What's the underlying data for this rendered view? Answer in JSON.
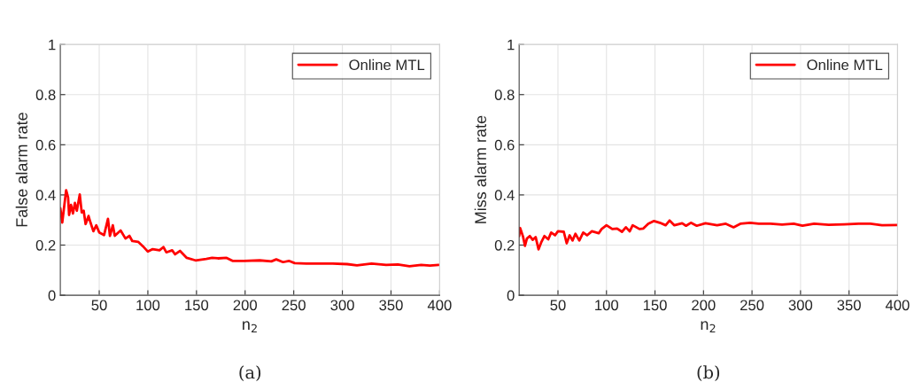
{
  "chart_data": [
    {
      "type": "line",
      "xlabel": "n$_{2}$",
      "ylabel": "False alarm rate",
      "annotations": [
        "(a)"
      ],
      "x": [
        10,
        12,
        16,
        18,
        19,
        21,
        23,
        25,
        27,
        30,
        32,
        34,
        36,
        39,
        41,
        44,
        47,
        50,
        55,
        59,
        61,
        64,
        66,
        72,
        77,
        81,
        84,
        90,
        95,
        100,
        105,
        112,
        116,
        119,
        125,
        128,
        133,
        140,
        149,
        160,
        166,
        172,
        181,
        187,
        199,
        215,
        227,
        232,
        239,
        245,
        251,
        263,
        275,
        290,
        305,
        315,
        330,
        345,
        357,
        369,
        381,
        390,
        399
      ],
      "series": [
        {
          "name": "Online MTL",
          "color": "#ff0000",
          "values": [
            0.347,
            0.29,
            0.419,
            0.39,
            0.32,
            0.36,
            0.326,
            0.368,
            0.337,
            0.402,
            0.33,
            0.337,
            0.284,
            0.316,
            0.29,
            0.255,
            0.279,
            0.25,
            0.24,
            0.305,
            0.237,
            0.279,
            0.237,
            0.258,
            0.226,
            0.237,
            0.216,
            0.213,
            0.195,
            0.174,
            0.184,
            0.179,
            0.192,
            0.171,
            0.179,
            0.163,
            0.177,
            0.149,
            0.139,
            0.145,
            0.149,
            0.147,
            0.149,
            0.137,
            0.137,
            0.139,
            0.135,
            0.143,
            0.132,
            0.137,
            0.128,
            0.126,
            0.126,
            0.126,
            0.124,
            0.119,
            0.126,
            0.121,
            0.123,
            0.116,
            0.121,
            0.118,
            0.121
          ]
        }
      ],
      "xlim": [
        10,
        400
      ],
      "ylim": [
        0,
        1
      ],
      "xticks": [
        50,
        100,
        150,
        200,
        250,
        300,
        350,
        400
      ],
      "yticks": [
        0,
        0.2,
        0.4,
        0.6,
        0.8,
        1
      ],
      "grid": true,
      "legend": "top right"
    },
    {
      "type": "line",
      "xlabel": "n$_{2}$",
      "ylabel": "Miss alarm rate",
      "annotations": [
        "(b)"
      ],
      "x": [
        10,
        11,
        14,
        16,
        18,
        21,
        24,
        27,
        30,
        33,
        36,
        40,
        43,
        47,
        50,
        56,
        59,
        62,
        65,
        68,
        72,
        76,
        80,
        85,
        92,
        95,
        100,
        106,
        111,
        116,
        120,
        124,
        127,
        134,
        138,
        143,
        149,
        155,
        161,
        165,
        170,
        178,
        182,
        187,
        193,
        202,
        214,
        223,
        231,
        238,
        248,
        257,
        269,
        281,
        293,
        302,
        314,
        329,
        345,
        360,
        372,
        384,
        400
      ],
      "series": [
        {
          "name": "Online MTL",
          "color": "#ff0000",
          "values": [
            0.236,
            0.268,
            0.234,
            0.197,
            0.226,
            0.236,
            0.221,
            0.232,
            0.183,
            0.213,
            0.236,
            0.223,
            0.25,
            0.239,
            0.255,
            0.253,
            0.207,
            0.239,
            0.218,
            0.245,
            0.218,
            0.25,
            0.239,
            0.255,
            0.247,
            0.264,
            0.279,
            0.264,
            0.266,
            0.253,
            0.271,
            0.255,
            0.279,
            0.264,
            0.266,
            0.285,
            0.296,
            0.289,
            0.279,
            0.298,
            0.279,
            0.287,
            0.277,
            0.289,
            0.277,
            0.287,
            0.279,
            0.285,
            0.271,
            0.285,
            0.289,
            0.285,
            0.285,
            0.282,
            0.285,
            0.277,
            0.285,
            0.281,
            0.283,
            0.285,
            0.285,
            0.279,
            0.28
          ]
        }
      ],
      "xlim": [
        10,
        400
      ],
      "ylim": [
        0,
        1
      ],
      "xticks": [
        50,
        100,
        150,
        200,
        250,
        300,
        350,
        400
      ],
      "yticks": [
        0,
        0.2,
        0.4,
        0.6,
        0.8,
        1
      ],
      "grid": true,
      "legend": "top right"
    }
  ]
}
